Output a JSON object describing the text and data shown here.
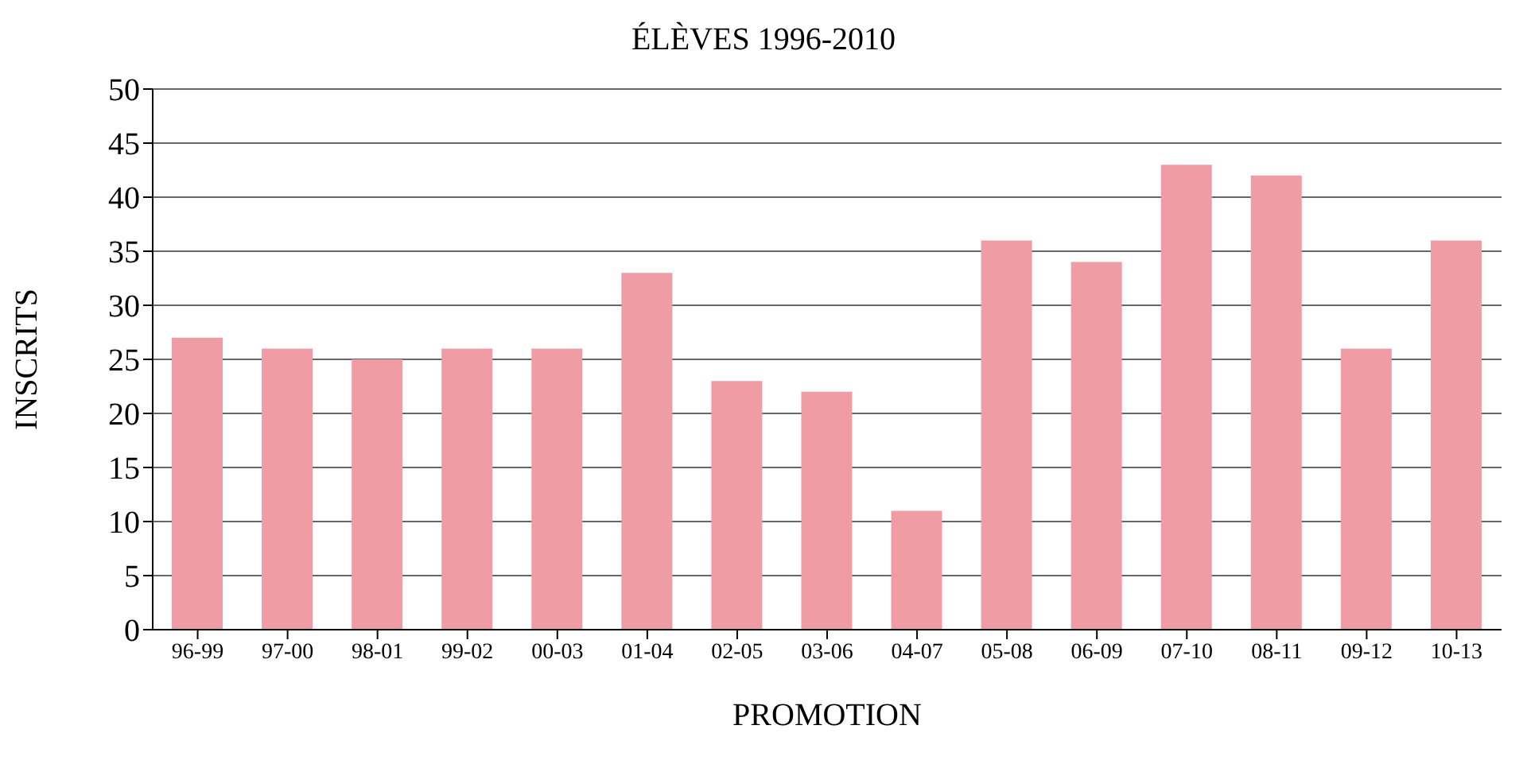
{
  "chart_data": {
    "type": "bar",
    "title": "ÉLÈVES 1996-2010",
    "xlabel": "PROMOTION",
    "ylabel": "INSCRITS",
    "categories": [
      "96-99",
      "97-00",
      "98-01",
      "99-02",
      "00-03",
      "01-04",
      "02-05",
      "03-06",
      "04-07",
      "05-08",
      "06-09",
      "07-10",
      "08-11",
      "09-12",
      "10-13"
    ],
    "values": [
      27,
      26,
      25,
      26,
      26,
      33,
      23,
      22,
      11,
      36,
      34,
      43,
      42,
      26,
      36
    ],
    "color": "#f09ca4",
    "ylim": [
      0,
      50
    ],
    "yticks": [
      0,
      5,
      10,
      15,
      20,
      25,
      30,
      35,
      40,
      45,
      50
    ],
    "grid": "y"
  }
}
